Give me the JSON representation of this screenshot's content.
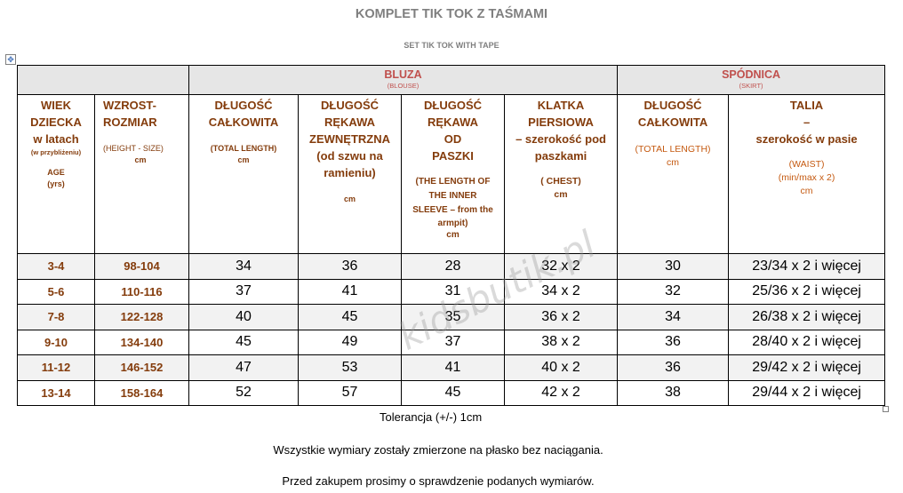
{
  "title": "KOMPLET TIK TOK Z TAŚMAMI",
  "subtitle": "SET TIK TOK WITH TAPE",
  "groups": {
    "bluza": {
      "label": "BLUZA",
      "sub": "(BLOUSE)"
    },
    "spodnica": {
      "label": "SPÓDNICA",
      "sub": "(SKIRT)"
    }
  },
  "headers": {
    "age": {
      "l1": "WIEK",
      "l2": "DZIECKA",
      "l3": "w latach",
      "l4": "(w przybliżeniu)",
      "l5": "AGE",
      "l6": "(yrs)"
    },
    "height": {
      "l1": "WZROST-",
      "l2": "ROZMIAR",
      "l3": "(HEIGHT - SIZE)",
      "l4": "cm"
    },
    "total_length": {
      "l1": "DŁUGOŚĆ",
      "l2": "CAŁKOWITA",
      "l3": "(TOTAL LENGTH)",
      "l4": "cm"
    },
    "sleeve_outer": {
      "l1": "DŁUGOŚĆ",
      "l2": "RĘKAWA",
      "l3": "ZEWNĘTRZNA",
      "l4": "(od szwu na",
      "l5": "ramieniu)",
      "l6": "cm"
    },
    "sleeve_inner": {
      "l1": "DŁUGOŚĆ",
      "l2": "RĘKAWA",
      "l3": "OD",
      "l4": "PASZKI",
      "l5": "(THE LENGTH OF",
      "l6": "THE INNER",
      "l7": "SLEEVE – from the",
      "l8": "armpit)",
      "l9": "cm"
    },
    "chest": {
      "l1": "KLATKA",
      "l2": "PIERSIOWA",
      "l3": "– szerokość pod",
      "l4": "paszkami",
      "l5": "( CHEST)",
      "l6": "cm"
    },
    "skirt_length": {
      "l1": "DŁUGOŚĆ",
      "l2": "CAŁKOWITA",
      "l3": "(TOTAL LENGTH)",
      "l4": "cm"
    },
    "waist": {
      "l1": "TALIA",
      "l2": "–",
      "l3": "szerokość w pasie",
      "l4": "(WAIST)",
      "l5": "(min/max x 2)",
      "l6": "cm"
    }
  },
  "rows": [
    [
      "3-4",
      "98-104",
      "34",
      "36",
      "28",
      "32 x 2",
      "30",
      "23/34 x 2 i więcej"
    ],
    [
      "5-6",
      "110-116",
      "37",
      "41",
      "31",
      "34 x 2",
      "32",
      "25/36 x 2 i więcej"
    ],
    [
      "7-8",
      "122-128",
      "40",
      "45",
      "35",
      "36 x 2",
      "34",
      "26/38 x 2 i więcej"
    ],
    [
      "9-10",
      "134-140",
      "45",
      "49",
      "37",
      "38 x 2",
      "36",
      "28/40 x 2 i więcej"
    ],
    [
      "11-12",
      "146-152",
      "47",
      "53",
      "41",
      "40 x 2",
      "36",
      "29/42 x 2 i więcej"
    ],
    [
      "13-14",
      "158-164",
      "52",
      "57",
      "45",
      "42 x 2",
      "38",
      "29/44 x 2 i więcej"
    ]
  ],
  "tolerance": "Tolerancja (+/-) 1cm",
  "note1": "Wszystkie wymiary zostały zmierzone na płasko bez naciągania.",
  "note2": "Przed zakupem prosimy o sprawdzenie podanych  wymiarów.",
  "watermark": "kidsbutik.pl"
}
